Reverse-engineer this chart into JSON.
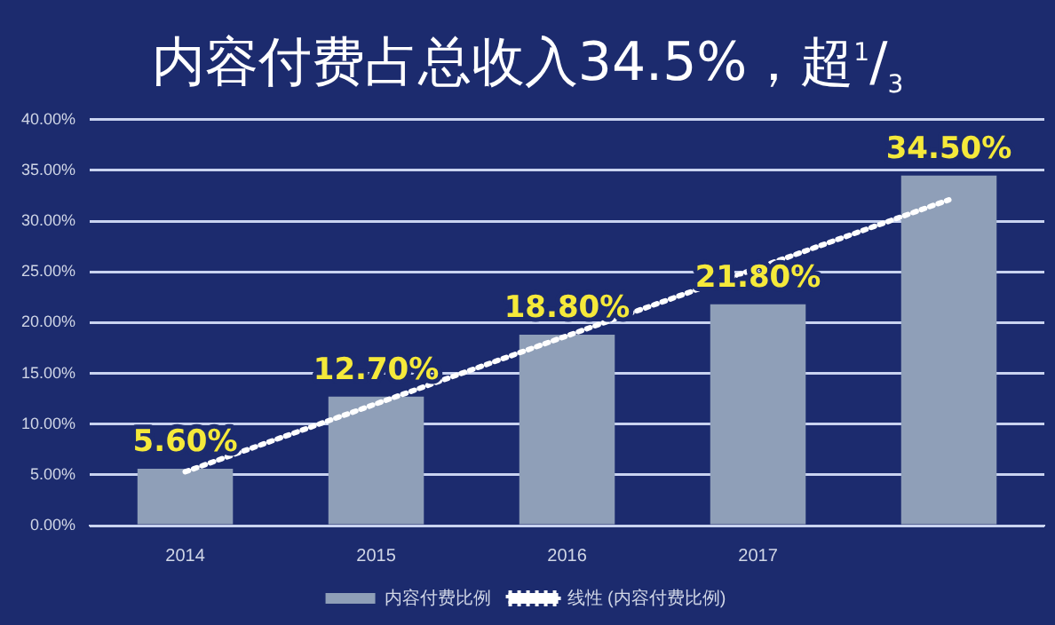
{
  "chart_data": {
    "type": "bar",
    "title": "内容付费占总收入34.5%，超$^{1}$/$_{3}$",
    "categories": [
      "2014",
      "2015",
      "2016",
      "2017",
      null
    ],
    "series": [
      {
        "name": "内容付费比例",
        "color": "#8f9fb8",
        "values": [
          5.6,
          12.7,
          18.8,
          21.8,
          34.5
        ],
        "value_labels": [
          "5.60%",
          "12.70%",
          "18.80%",
          "21.80%",
          "34.50%"
        ]
      },
      {
        "name": "线性 (内容付费比例)",
        "type": "line",
        "color": "#ffffff",
        "line_style": "dotted",
        "marker": "none",
        "values": [
          5.3,
          12.0,
          18.7,
          25.4,
          32.1
        ]
      }
    ],
    "ylim": [
      0,
      40
    ],
    "yticks": [
      {
        "value": 0,
        "label": "0.00%"
      },
      {
        "value": 5,
        "label": "5.00%"
      },
      {
        "value": 10,
        "label": "10.00%"
      },
      {
        "value": 15,
        "label": "15.00%"
      },
      {
        "value": 20,
        "label": "20.00%"
      },
      {
        "value": 25,
        "label": "25.00%"
      },
      {
        "value": 30,
        "label": "30.00%"
      },
      {
        "value": 35,
        "label": "35.00%"
      },
      {
        "value": 40,
        "label": "40.00%"
      }
    ],
    "grid": "y",
    "legend": "bottom"
  }
}
